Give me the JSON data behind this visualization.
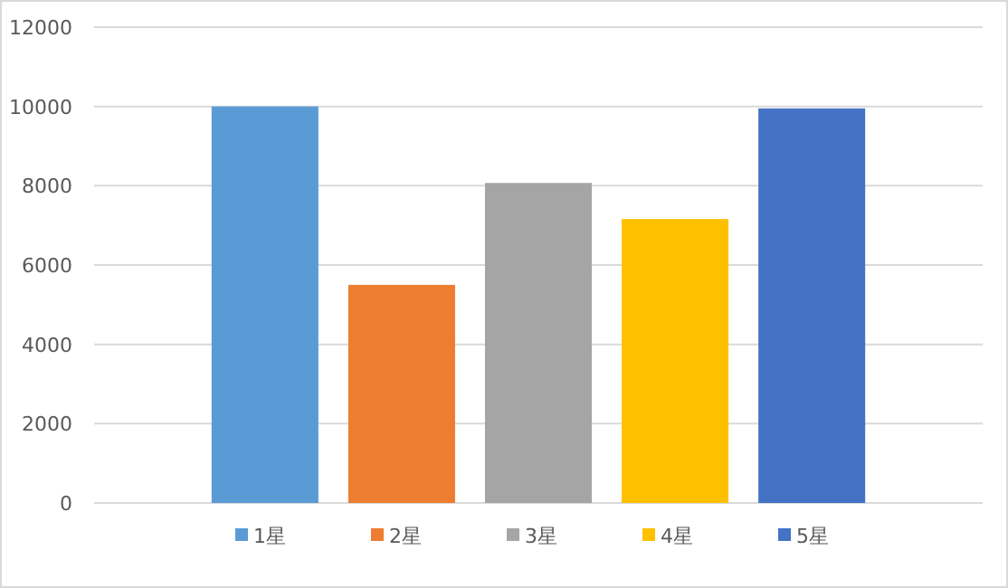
{
  "chart_data": {
    "type": "bar",
    "categories": [
      null
    ],
    "series": [
      {
        "name": "1星",
        "color": "#5b9bd5",
        "values": [
          10000
        ]
      },
      {
        "name": "2星",
        "color": "#ed7d31",
        "values": [
          5500
        ]
      },
      {
        "name": "3星",
        "color": "#a5a5a5",
        "values": [
          8070
        ]
      },
      {
        "name": "4星",
        "color": "#ffc000",
        "values": [
          7160
        ]
      },
      {
        "name": "5星",
        "color": "#4472c4",
        "values": [
          9950
        ]
      }
    ],
    "ylim": [
      0,
      12000
    ],
    "yticks": [
      0,
      2000,
      4000,
      6000,
      8000,
      10000,
      12000
    ],
    "grid": "y",
    "legend": "bottom"
  }
}
